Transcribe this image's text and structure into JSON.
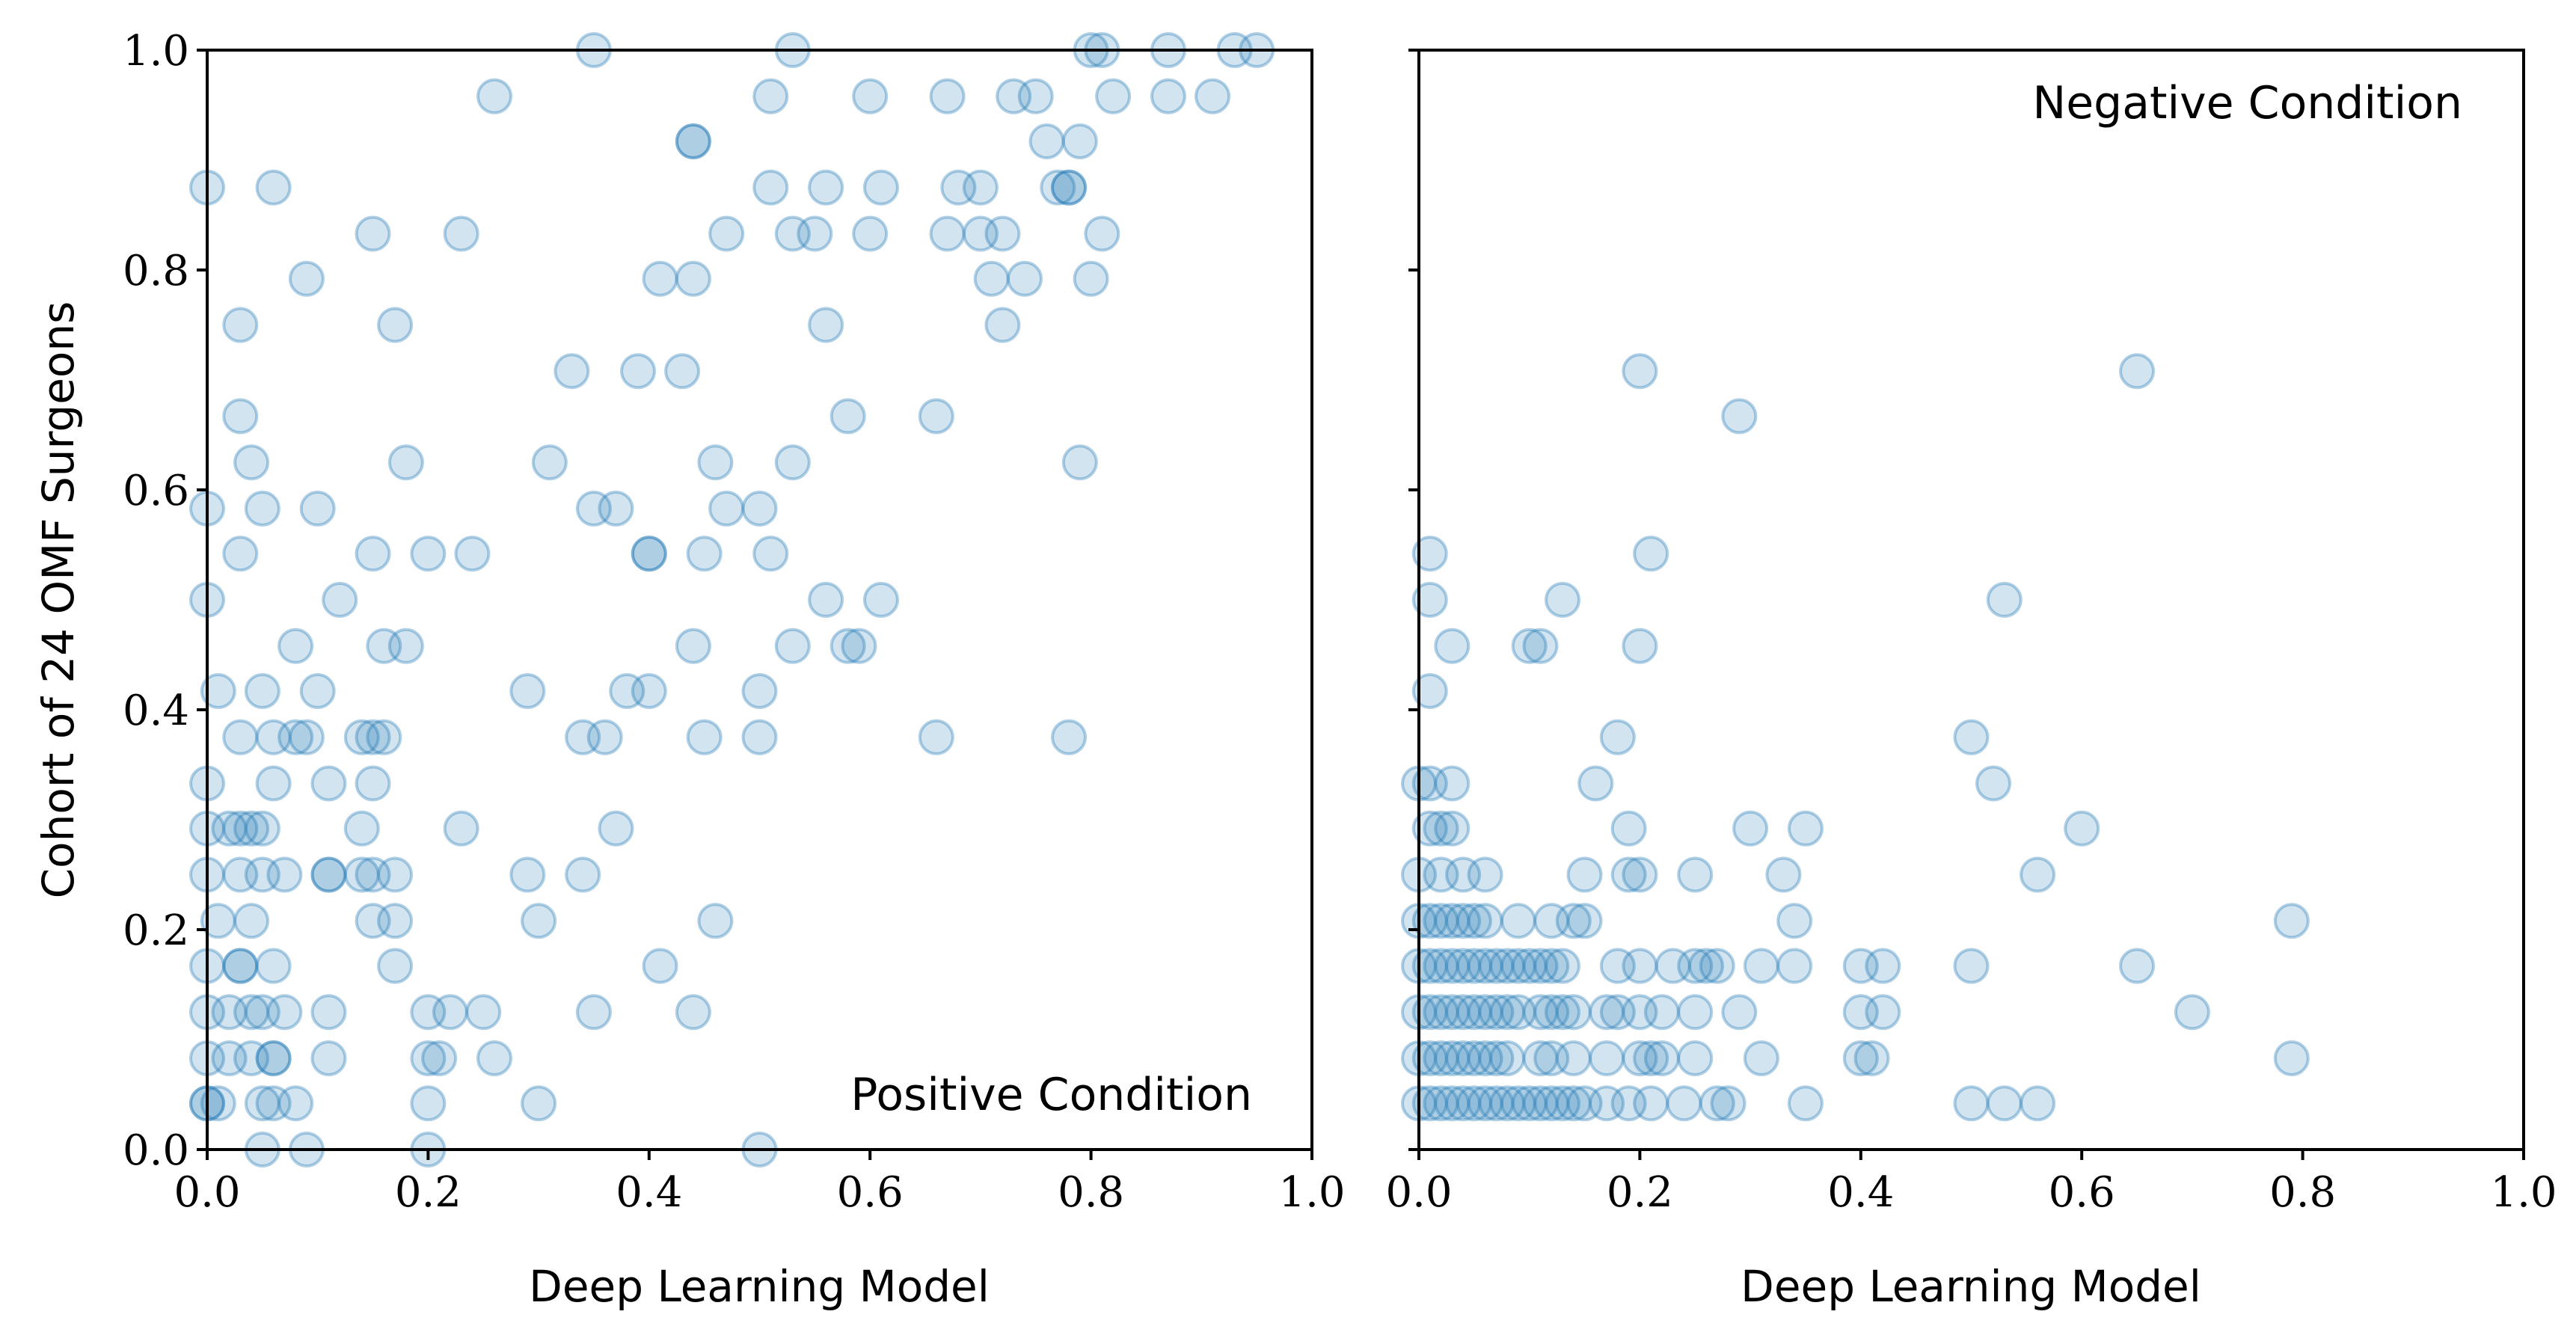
{
  "chart_data": [
    {
      "type": "scatter",
      "panel": "left",
      "title": "",
      "annotation": "Positive Condition",
      "annotation_position": "bottom-right",
      "xlabel": "Deep Learning Model",
      "ylabel": "Cohort of 24 OMF Surgeons",
      "xlim": [
        0,
        1
      ],
      "ylim": [
        0,
        1
      ],
      "xticks": [
        "0.0",
        "0.2",
        "0.4",
        "0.6",
        "0.8",
        "1.0"
      ],
      "yticks": [
        "0.0",
        "0.2",
        "0.4",
        "0.6",
        "0.8",
        "1.0"
      ],
      "color": "#1f77b4",
      "x": [
        0.35,
        0.53,
        0.8,
        0.81,
        0.87,
        0.93,
        0.95,
        0.0,
        0.26,
        0.44,
        0.44,
        0.51,
        0.6,
        0.67,
        0.73,
        0.75,
        0.76,
        0.79,
        0.82,
        0.87,
        0.91,
        0.77,
        0.78,
        0.06,
        0.51,
        0.56,
        0.61,
        0.68,
        0.7,
        0.78,
        0.15,
        0.23,
        0.47,
        0.53,
        0.55,
        0.6,
        0.67,
        0.7,
        0.72,
        0.81,
        0.09,
        0.41,
        0.44,
        0.71,
        0.74,
        0.8,
        0.03,
        0.17,
        0.56,
        0.72,
        0.33,
        0.39,
        0.43,
        0.03,
        0.58,
        0.66,
        0.04,
        0.18,
        0.31,
        0.46,
        0.53,
        0.79,
        0.0,
        0.05,
        0.1,
        0.35,
        0.37,
        0.47,
        0.5,
        0.03,
        0.15,
        0.2,
        0.24,
        0.4,
        0.4,
        0.45,
        0.51,
        0.0,
        0.12,
        0.56,
        0.61,
        0.08,
        0.16,
        0.18,
        0.44,
        0.53,
        0.58,
        0.59,
        0.01,
        0.05,
        0.1,
        0.29,
        0.38,
        0.4,
        0.5,
        0.03,
        0.06,
        0.08,
        0.09,
        0.14,
        0.15,
        0.16,
        0.34,
        0.36,
        0.45,
        0.5,
        0.66,
        0.78,
        0.0,
        0.06,
        0.11,
        0.15,
        0.0,
        0.02,
        0.03,
        0.04,
        0.05,
        0.14,
        0.23,
        0.37,
        0.0,
        0.03,
        0.05,
        0.07,
        0.11,
        0.11,
        0.14,
        0.15,
        0.17,
        0.29,
        0.34,
        0.01,
        0.04,
        0.15,
        0.17,
        0.3,
        0.46,
        0.0,
        0.03,
        0.03,
        0.06,
        0.17,
        0.41,
        0.0,
        0.02,
        0.04,
        0.05,
        0.07,
        0.11,
        0.2,
        0.22,
        0.25,
        0.35,
        0.44,
        0.0,
        0.02,
        0.04,
        0.06,
        0.06,
        0.11,
        0.2,
        0.21,
        0.26,
        0.0,
        0.0,
        0.01,
        0.05,
        0.06,
        0.08,
        0.2,
        0.3,
        0.05,
        0.09,
        0.2,
        0.5
      ],
      "y": [
        1.0,
        1.0,
        1.0,
        1.0,
        1.0,
        1.0,
        1.0,
        0.875,
        0.958,
        0.917,
        0.917,
        0.958,
        0.958,
        0.958,
        0.958,
        0.958,
        0.917,
        0.917,
        0.958,
        0.958,
        0.958,
        0.875,
        0.875,
        0.875,
        0.875,
        0.875,
        0.875,
        0.875,
        0.875,
        0.875,
        0.833,
        0.833,
        0.833,
        0.833,
        0.833,
        0.833,
        0.833,
        0.833,
        0.833,
        0.833,
        0.792,
        0.792,
        0.792,
        0.792,
        0.792,
        0.792,
        0.75,
        0.75,
        0.75,
        0.75,
        0.708,
        0.708,
        0.708,
        0.667,
        0.667,
        0.667,
        0.625,
        0.625,
        0.625,
        0.625,
        0.625,
        0.625,
        0.583,
        0.583,
        0.583,
        0.583,
        0.583,
        0.583,
        0.583,
        0.542,
        0.542,
        0.542,
        0.542,
        0.542,
        0.542,
        0.542,
        0.542,
        0.5,
        0.5,
        0.5,
        0.5,
        0.458,
        0.458,
        0.458,
        0.458,
        0.458,
        0.458,
        0.458,
        0.417,
        0.417,
        0.417,
        0.417,
        0.417,
        0.417,
        0.417,
        0.375,
        0.375,
        0.375,
        0.375,
        0.375,
        0.375,
        0.375,
        0.375,
        0.375,
        0.375,
        0.375,
        0.375,
        0.375,
        0.333,
        0.333,
        0.333,
        0.333,
        0.292,
        0.292,
        0.292,
        0.292,
        0.292,
        0.292,
        0.292,
        0.292,
        0.25,
        0.25,
        0.25,
        0.25,
        0.25,
        0.25,
        0.25,
        0.25,
        0.25,
        0.25,
        0.25,
        0.208,
        0.208,
        0.208,
        0.208,
        0.208,
        0.208,
        0.167,
        0.167,
        0.167,
        0.167,
        0.167,
        0.167,
        0.125,
        0.125,
        0.125,
        0.125,
        0.125,
        0.125,
        0.125,
        0.125,
        0.125,
        0.125,
        0.125,
        0.083,
        0.083,
        0.083,
        0.083,
        0.083,
        0.083,
        0.083,
        0.083,
        0.083,
        0.042,
        0.042,
        0.042,
        0.042,
        0.042,
        0.042,
        0.042,
        0.042,
        0.0,
        0.0,
        0.0,
        0.0
      ]
    },
    {
      "type": "scatter",
      "panel": "right",
      "title": "",
      "annotation": "Negative Condition",
      "annotation_position": "top-right",
      "xlabel": "Deep Learning Model",
      "ylabel": "",
      "xlim": [
        0,
        1
      ],
      "ylim": [
        0,
        1
      ],
      "xticks": [
        "0.0",
        "0.2",
        "0.4",
        "0.6",
        "0.8",
        "1.0"
      ],
      "yticks": [],
      "color": "#1f77b4",
      "x": [
        0.2,
        0.65,
        0.29,
        0.21,
        0.01,
        0.01,
        0.13,
        0.53,
        0.03,
        0.1,
        0.11,
        0.2,
        0.01,
        0.18,
        0.5,
        0.0,
        0.01,
        0.03,
        0.16,
        0.52,
        0.01,
        0.02,
        0.03,
        0.19,
        0.3,
        0.35,
        0.6,
        0.0,
        0.02,
        0.04,
        0.06,
        0.15,
        0.19,
        0.2,
        0.25,
        0.33,
        0.56,
        0.0,
        0.01,
        0.02,
        0.03,
        0.04,
        0.05,
        0.06,
        0.09,
        0.12,
        0.14,
        0.15,
        0.34,
        0.79,
        0.0,
        0.01,
        0.02,
        0.03,
        0.04,
        0.05,
        0.06,
        0.07,
        0.08,
        0.09,
        0.1,
        0.11,
        0.12,
        0.13,
        0.18,
        0.2,
        0.23,
        0.25,
        0.26,
        0.27,
        0.31,
        0.34,
        0.4,
        0.42,
        0.5,
        0.65,
        0.0,
        0.01,
        0.02,
        0.03,
        0.04,
        0.05,
        0.06,
        0.07,
        0.08,
        0.09,
        0.11,
        0.12,
        0.13,
        0.14,
        0.17,
        0.18,
        0.2,
        0.22,
        0.25,
        0.29,
        0.4,
        0.42,
        0.7,
        0.0,
        0.01,
        0.02,
        0.03,
        0.04,
        0.05,
        0.06,
        0.07,
        0.08,
        0.11,
        0.12,
        0.14,
        0.17,
        0.2,
        0.21,
        0.22,
        0.25,
        0.31,
        0.4,
        0.41,
        0.79,
        0.0,
        0.01,
        0.02,
        0.03,
        0.04,
        0.05,
        0.06,
        0.07,
        0.08,
        0.09,
        0.1,
        0.11,
        0.12,
        0.13,
        0.14,
        0.15,
        0.17,
        0.19,
        0.21,
        0.24,
        0.27,
        0.28,
        0.35,
        0.5,
        0.53,
        0.56
      ],
      "y": [
        0.708,
        0.708,
        0.667,
        0.542,
        0.542,
        0.5,
        0.5,
        0.5,
        0.458,
        0.458,
        0.458,
        0.458,
        0.417,
        0.375,
        0.375,
        0.333,
        0.333,
        0.333,
        0.333,
        0.333,
        0.292,
        0.292,
        0.292,
        0.292,
        0.292,
        0.292,
        0.292,
        0.25,
        0.25,
        0.25,
        0.25,
        0.25,
        0.25,
        0.25,
        0.25,
        0.25,
        0.25,
        0.208,
        0.208,
        0.208,
        0.208,
        0.208,
        0.208,
        0.208,
        0.208,
        0.208,
        0.208,
        0.208,
        0.208,
        0.208,
        0.167,
        0.167,
        0.167,
        0.167,
        0.167,
        0.167,
        0.167,
        0.167,
        0.167,
        0.167,
        0.167,
        0.167,
        0.167,
        0.167,
        0.167,
        0.167,
        0.167,
        0.167,
        0.167,
        0.167,
        0.167,
        0.167,
        0.167,
        0.167,
        0.167,
        0.167,
        0.125,
        0.125,
        0.125,
        0.125,
        0.125,
        0.125,
        0.125,
        0.125,
        0.125,
        0.125,
        0.125,
        0.125,
        0.125,
        0.125,
        0.125,
        0.125,
        0.125,
        0.125,
        0.125,
        0.125,
        0.125,
        0.125,
        0.125,
        0.083,
        0.083,
        0.083,
        0.083,
        0.083,
        0.083,
        0.083,
        0.083,
        0.083,
        0.083,
        0.083,
        0.083,
        0.083,
        0.083,
        0.083,
        0.083,
        0.083,
        0.083,
        0.083,
        0.083,
        0.083,
        0.042,
        0.042,
        0.042,
        0.042,
        0.042,
        0.042,
        0.042,
        0.042,
        0.042,
        0.042,
        0.042,
        0.042,
        0.042,
        0.042,
        0.042,
        0.042,
        0.042,
        0.042,
        0.042,
        0.042,
        0.042,
        0.042,
        0.042,
        0.042,
        0.042,
        0.042
      ]
    }
  ]
}
